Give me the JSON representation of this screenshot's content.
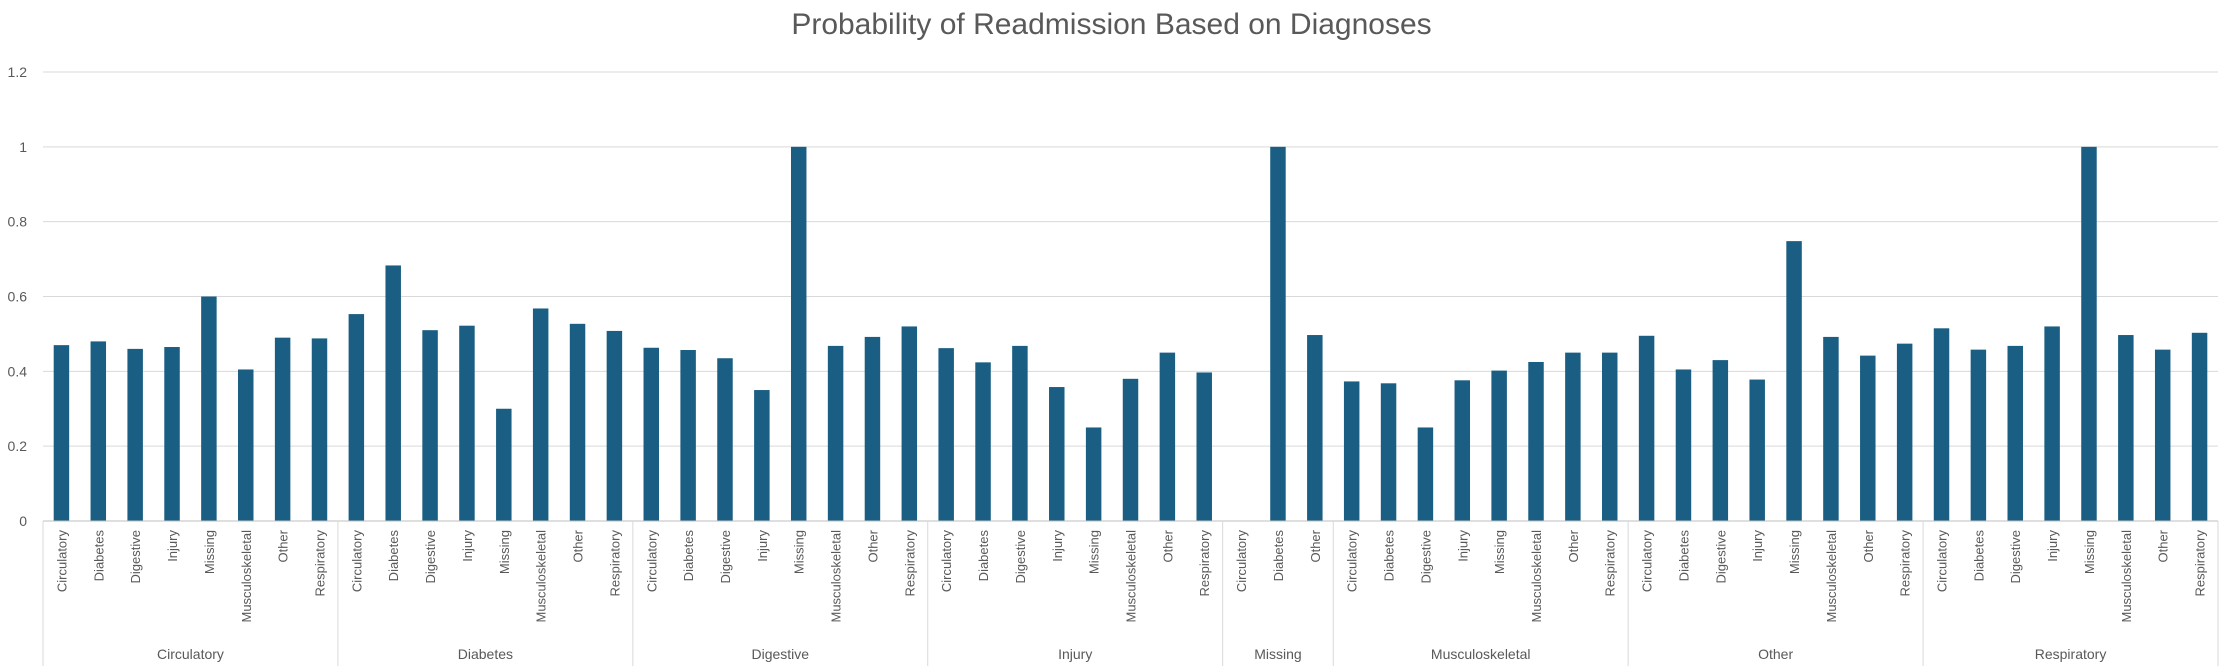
{
  "chart_data": {
    "type": "bar",
    "title": "Probability of Readmission Based on Diagnoses",
    "xlabel": "",
    "ylabel": "",
    "ylim": [
      0,
      1.2
    ],
    "yticks": [
      "0",
      "0.2",
      "0.4",
      "0.6",
      "0.8",
      "1",
      "1.2"
    ],
    "ytick_values": [
      0,
      0.2,
      0.4,
      0.6,
      0.8,
      1.0,
      1.2
    ],
    "grid": true,
    "legend": "none",
    "bar_color": "#1a5f83",
    "groups": [
      {
        "name": "Circulatory",
        "categories": [
          "Circulatory",
          "Diabetes",
          "Digestive",
          "Injury",
          "Missing",
          "Musculoskeletal",
          "Other",
          "Respiratory"
        ],
        "values": [
          0.47,
          0.48,
          0.46,
          0.465,
          0.6,
          0.405,
          0.49,
          0.488
        ]
      },
      {
        "name": "Diabetes",
        "categories": [
          "Circulatory",
          "Diabetes",
          "Digestive",
          "Injury",
          "Missing",
          "Musculoskeletal",
          "Other",
          "Respiratory"
        ],
        "values": [
          0.553,
          0.683,
          0.51,
          0.522,
          0.3,
          0.568,
          0.527,
          0.508
        ]
      },
      {
        "name": "Digestive",
        "categories": [
          "Circulatory",
          "Diabetes",
          "Digestive",
          "Injury",
          "Missing",
          "Musculoskeletal",
          "Other",
          "Respiratory"
        ],
        "values": [
          0.463,
          0.457,
          0.435,
          0.35,
          1.0,
          0.468,
          0.492,
          0.52
        ]
      },
      {
        "name": "Injury",
        "categories": [
          "Circulatory",
          "Diabetes",
          "Digestive",
          "Injury",
          "Missing",
          "Musculoskeletal",
          "Other",
          "Respiratory"
        ],
        "values": [
          0.462,
          0.424,
          0.468,
          0.358,
          0.25,
          0.38,
          0.45,
          0.397
        ]
      },
      {
        "name": "Missing",
        "categories": [
          "Circulatory",
          "Diabetes",
          "Other"
        ],
        "values": [
          0,
          1.0,
          0.497
        ]
      },
      {
        "name": "Musculoskeletal",
        "categories": [
          "Circulatory",
          "Diabetes",
          "Digestive",
          "Injury",
          "Missing",
          "Musculoskeletal",
          "Other",
          "Respiratory"
        ],
        "values": [
          0.373,
          0.368,
          0.25,
          0.376,
          0.402,
          0.425,
          0.45,
          0.45
        ]
      },
      {
        "name": "Other",
        "categories": [
          "Circulatory",
          "Diabetes",
          "Digestive",
          "Injury",
          "Missing",
          "Musculoskeletal",
          "Other",
          "Respiratory"
        ],
        "values": [
          0.495,
          0.405,
          0.43,
          0.378,
          0.748,
          0.492,
          0.442,
          0.474
        ]
      },
      {
        "name": "Respiratory",
        "categories": [
          "Circulatory",
          "Diabetes",
          "Digestive",
          "Injury",
          "Missing",
          "Musculoskeletal",
          "Other",
          "Respiratory"
        ],
        "values": [
          0.515,
          0.458,
          0.468,
          0.52,
          1.0,
          0.497,
          0.458,
          0.503
        ]
      }
    ]
  }
}
